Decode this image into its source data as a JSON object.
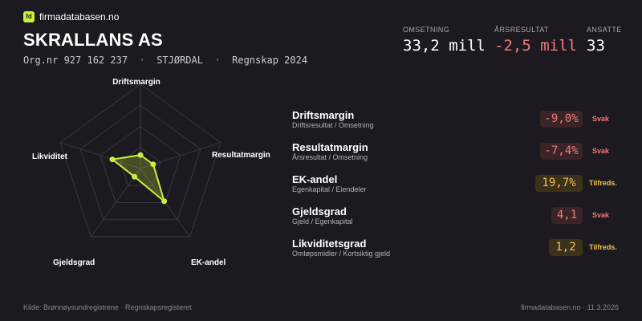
{
  "brand": {
    "icon_text": "fd",
    "name": "firmadatabasen.no"
  },
  "company": {
    "name": "SKRALLANS AS",
    "orgnr": "Org.nr 927 162 237",
    "location": "STJØRDAL",
    "report": "Regnskap 2024",
    "separator": "·"
  },
  "kpis": [
    {
      "label": "OMSETNING",
      "value": "33,2 mill",
      "negative": false
    },
    {
      "label": "ÅRSRESULTAT",
      "value": "-2,5 mill",
      "negative": true
    },
    {
      "label": "ANSATTE",
      "value": "33",
      "negative": false
    }
  ],
  "radar": {
    "axes": [
      "Driftsmargin",
      "Resultatmargin",
      "EK-andel",
      "Gjeldsgrad",
      "Likviditet"
    ],
    "scores": [
      0.16,
      0.16,
      0.48,
      0.12,
      0.35
    ],
    "colors": {
      "grid": "#3a3640",
      "fill": "#c8f03c",
      "stroke": "#c8f03c"
    }
  },
  "metrics": [
    {
      "name": "Driftsmargin",
      "sub": "Driftsresultat / Omsetning",
      "value": "-9,0%",
      "status": "Svak",
      "level": "bad"
    },
    {
      "name": "Resultatmargin",
      "sub": "Årsresultat / Omsetning",
      "value": "-7,4%",
      "status": "Svak",
      "level": "bad"
    },
    {
      "name": "EK-andel",
      "sub": "Egenkapital / Eiendeler",
      "value": "19,7%",
      "status": "Tilfreds.",
      "level": "ok"
    },
    {
      "name": "Gjeldsgrad",
      "sub": "Gjeld / Egenkapital",
      "value": "4,1",
      "status": "Svak",
      "level": "bad"
    },
    {
      "name": "Likviditetsgrad",
      "sub": "Omløpsmidler / Kortsiktig gjeld",
      "value": "1,2",
      "status": "Tilfreds.",
      "level": "ok"
    }
  ],
  "footer": {
    "source": "Kilde: Brønnøysundregistrene · Regnskapsregisteret",
    "site_date": "firmadatabasen.no · 11.3.2026"
  }
}
